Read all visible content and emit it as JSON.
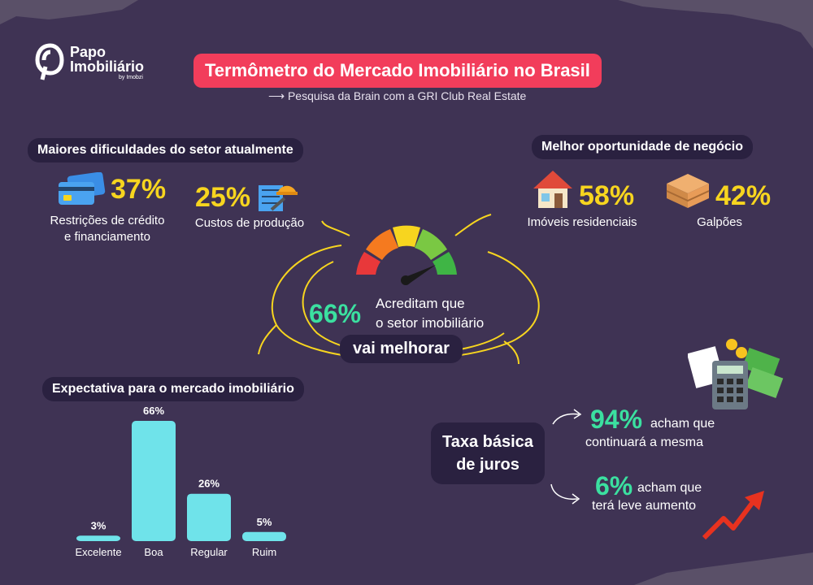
{
  "brand": {
    "name_line1": "Papo",
    "name_line2": "Imobiliário",
    "tagline": "by Imobzi"
  },
  "header": {
    "title": "Termômetro do Mercado Imobiliário no Brasil",
    "subtitle": "Pesquisa da Brain com a GRI Club Real Estate"
  },
  "difficulties": {
    "title": "Maiores dificuldades do setor atualmente",
    "items": [
      {
        "value": "37%",
        "label_line1": "Restrições de crédito",
        "label_line2": "e financiamento",
        "icon": "credit-cards-icon"
      },
      {
        "value": "25%",
        "label_line1": "Custos de produção",
        "icon": "construction-icon"
      }
    ]
  },
  "opportunities": {
    "title": "Melhor oportunidade de negócio",
    "items": [
      {
        "value": "58%",
        "label": "Imóveis residenciais",
        "icon": "house-icon"
      },
      {
        "value": "42%",
        "label": "Galpões",
        "icon": "pallets-icon"
      }
    ]
  },
  "gauge": {
    "value": "66%",
    "text_line1": "Acreditam que",
    "text_line2": "o setor imobiliário",
    "highlight": "vai melhorar"
  },
  "expectation": {
    "title": "Expectativa para o mercado imobiliário",
    "chart_data": {
      "type": "bar",
      "categories": [
        "Excelente",
        "Boa",
        "Regular",
        "Ruim"
      ],
      "values": [
        3,
        66,
        26,
        5
      ],
      "value_labels": [
        "3%",
        "66%",
        "26%",
        "5%"
      ],
      "ylim": [
        0,
        66
      ]
    }
  },
  "interest": {
    "title_line1": "Taxa básica",
    "title_line2": "de juros",
    "items": [
      {
        "value": "94%",
        "text_line1": "acham que",
        "text_line2": "continuará a mesma"
      },
      {
        "value": "6%",
        "text_line1": "acham que",
        "text_line2": "terá leve aumento"
      }
    ]
  },
  "colors": {
    "background": "#3f3354",
    "accent_red": "#f23d5b",
    "yellow": "#f7d51f",
    "green": "#3be0a0",
    "bar": "#6fe3ea"
  }
}
